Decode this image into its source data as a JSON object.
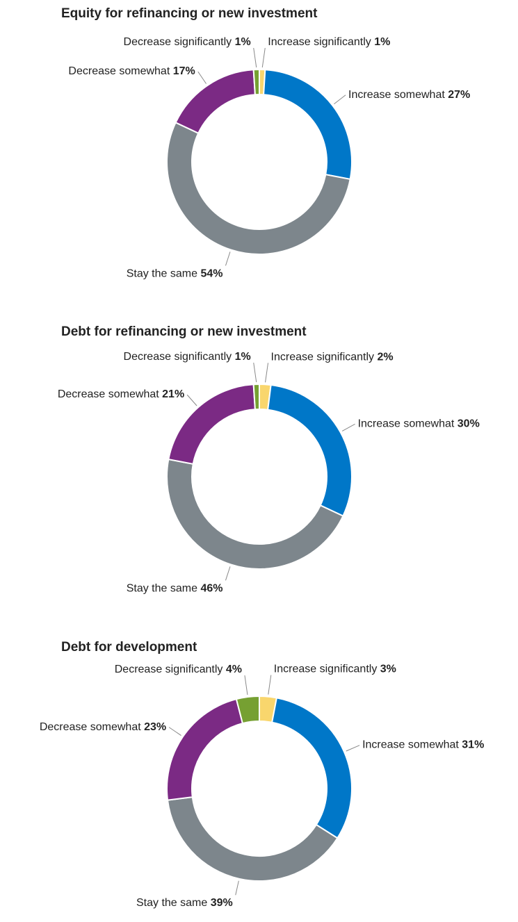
{
  "chart_data": [
    {
      "type": "pie",
      "title": "Equity for refinancing or new investment",
      "categories": [
        "Increase significantly",
        "Increase somewhat",
        "Stay the same",
        "Decrease somewhat",
        "Decrease significantly"
      ],
      "values": [
        1,
        27,
        54,
        17,
        1
      ],
      "value_labels": [
        "1%",
        "27%",
        "54%",
        "17%",
        "1%"
      ],
      "colors": [
        "#f9d66d",
        "#0077c8",
        "#7d868c",
        "#7b2a84",
        "#76a032"
      ]
    },
    {
      "type": "pie",
      "title": "Debt for refinancing or new investment",
      "categories": [
        "Increase significantly",
        "Increase somewhat",
        "Stay the same",
        "Decrease somewhat",
        "Decrease significantly"
      ],
      "values": [
        2,
        30,
        46,
        21,
        1
      ],
      "value_labels": [
        "2%",
        "30%",
        "46%",
        "21%",
        "1%"
      ],
      "colors": [
        "#f9d66d",
        "#0077c8",
        "#7d868c",
        "#7b2a84",
        "#76a032"
      ]
    },
    {
      "type": "pie",
      "title": "Debt for development",
      "categories": [
        "Increase significantly",
        "Increase somewhat",
        "Stay the same",
        "Decrease somewhat",
        "Decrease significantly"
      ],
      "values": [
        3,
        31,
        39,
        23,
        4
      ],
      "value_labels": [
        "3%",
        "31%",
        "39%",
        "23%",
        "4%"
      ],
      "colors": [
        "#f9d66d",
        "#0077c8",
        "#7d868c",
        "#7b2a84",
        "#76a032"
      ]
    }
  ]
}
